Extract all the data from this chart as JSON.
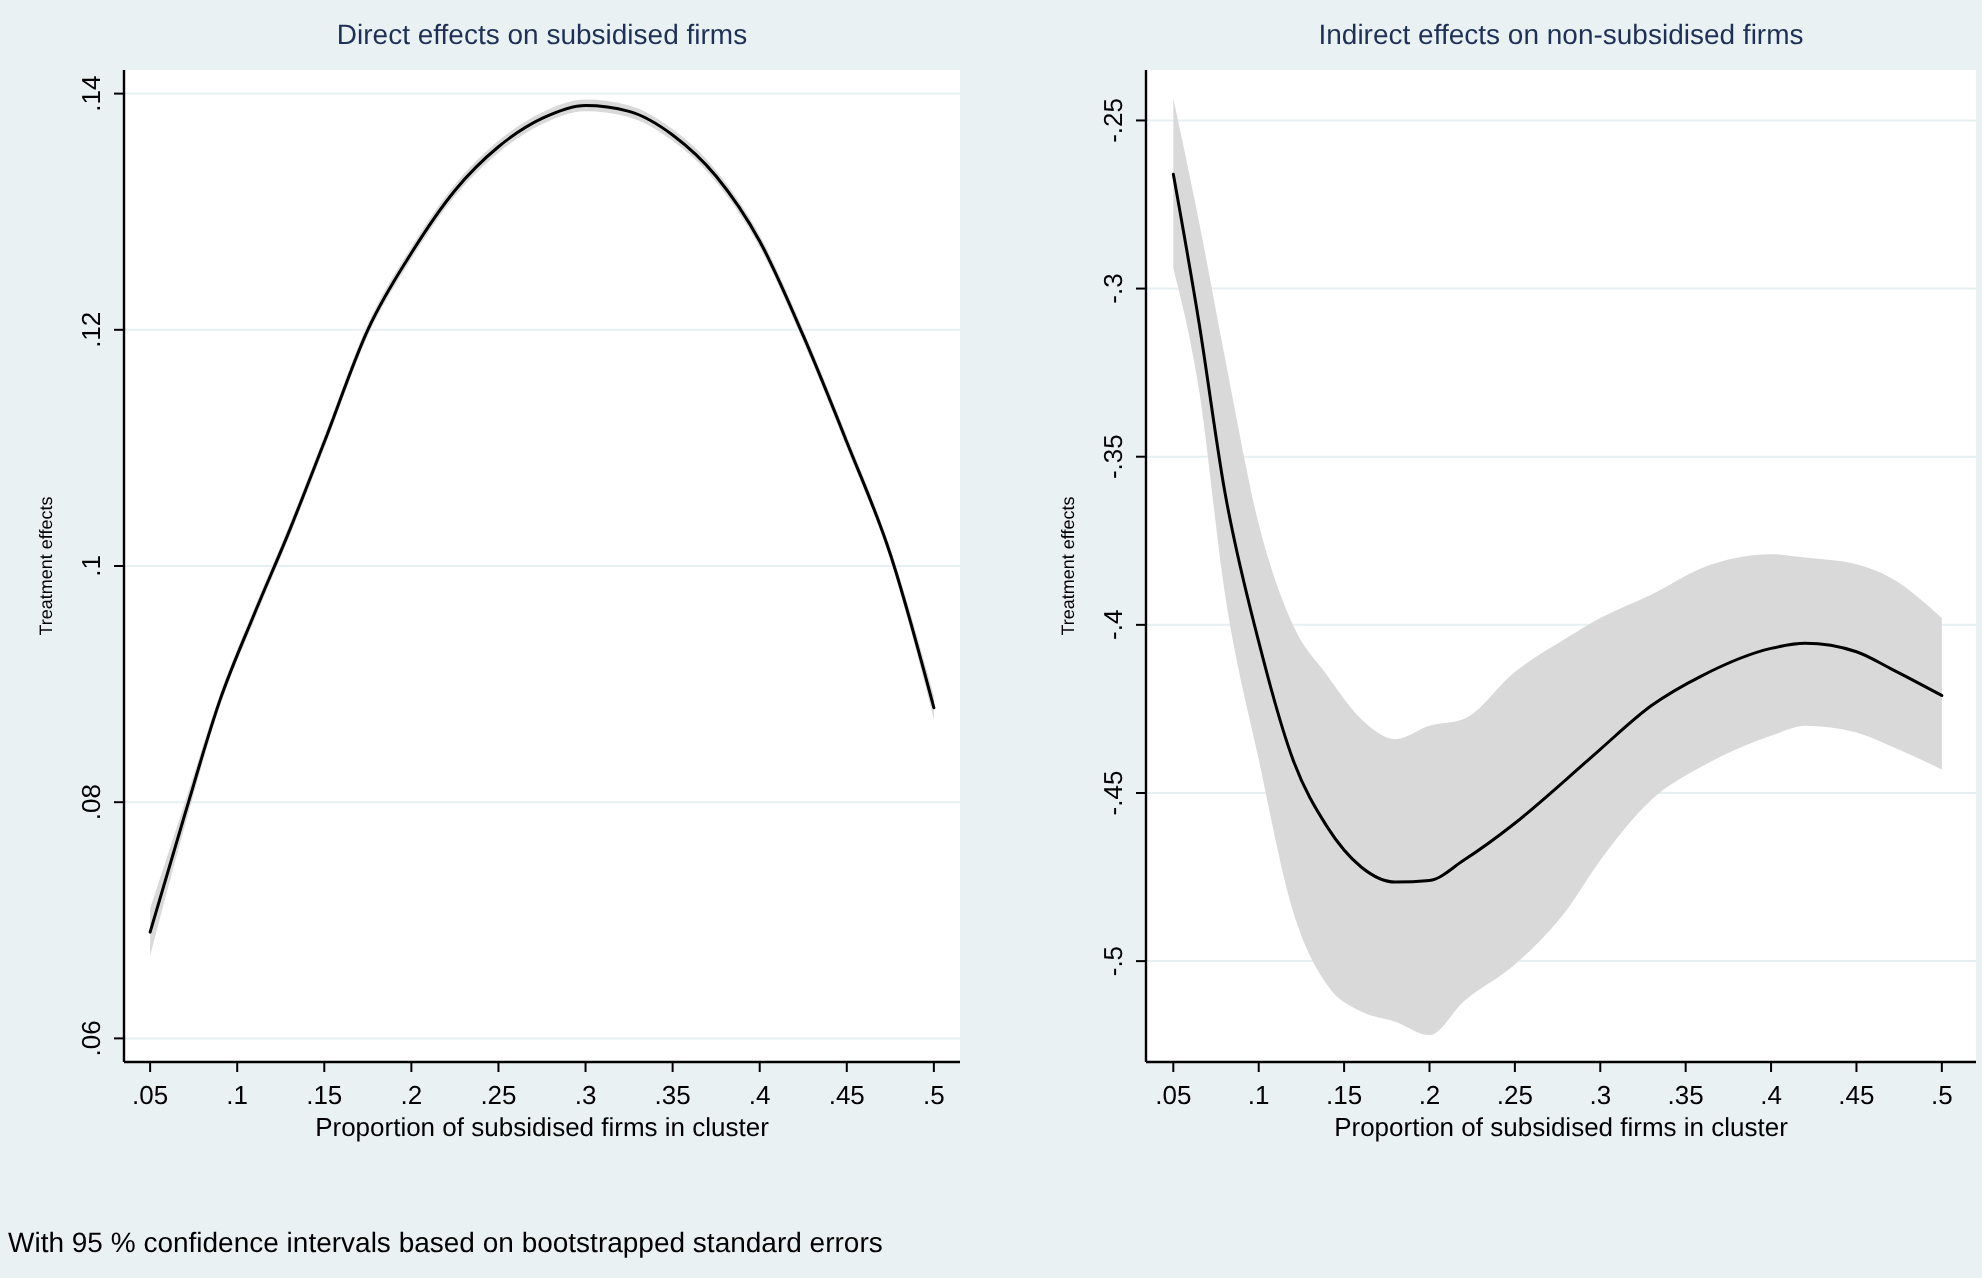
{
  "chart_data": [
    {
      "type": "line",
      "title": "Direct effects on subsidised firms",
      "xlabel": "Proportion of subsidised firms in cluster",
      "ylabel": "Treatment effects",
      "xlim": [
        0.035,
        0.515
      ],
      "ylim": [
        0.058,
        0.142
      ],
      "xticks": [
        {
          "value": 0.05,
          "label": ".05"
        },
        {
          "value": 0.1,
          "label": ".1"
        },
        {
          "value": 0.15,
          "label": ".15"
        },
        {
          "value": 0.2,
          "label": ".2"
        },
        {
          "value": 0.25,
          "label": ".25"
        },
        {
          "value": 0.3,
          "label": ".3"
        },
        {
          "value": 0.35,
          "label": ".35"
        },
        {
          "value": 0.4,
          "label": ".4"
        },
        {
          "value": 0.45,
          "label": ".45"
        },
        {
          "value": 0.5,
          "label": ".5"
        }
      ],
      "yticks": [
        {
          "value": 0.06,
          "label": ".06"
        },
        {
          "value": 0.08,
          "label": ".08"
        },
        {
          "value": 0.1,
          "label": ".1"
        },
        {
          "value": 0.12,
          "label": ".12"
        },
        {
          "value": 0.14,
          "label": ".14"
        }
      ],
      "grid": "y",
      "annotations": [
        "With 95 % confidence intervals based on bootstrapped standard errors"
      ],
      "series": [
        {
          "color": "#000000",
          "x": [
            0.05,
            0.07,
            0.09,
            0.11,
            0.13,
            0.15,
            0.175,
            0.2,
            0.225,
            0.25,
            0.275,
            0.3,
            0.325,
            0.35,
            0.375,
            0.4,
            0.425,
            0.45,
            0.475,
            0.5
          ],
          "values": [
            0.069,
            0.079,
            0.0886,
            0.096,
            0.103,
            0.1105,
            0.12,
            0.1265,
            0.1318,
            0.1355,
            0.1379,
            0.139,
            0.1385,
            0.1365,
            0.133,
            0.1275,
            0.1195,
            0.1105,
            0.101,
            0.088
          ],
          "lower": [
            0.067,
            0.078,
            0.0881,
            0.0955,
            0.1025,
            0.11,
            0.1195,
            0.126,
            0.1313,
            0.135,
            0.1374,
            0.1385,
            0.138,
            0.136,
            0.1325,
            0.127,
            0.119,
            0.11,
            0.1005,
            0.087
          ],
          "upper": [
            0.071,
            0.08,
            0.0891,
            0.0965,
            0.1035,
            0.111,
            0.1205,
            0.127,
            0.1323,
            0.136,
            0.1384,
            0.1395,
            0.139,
            0.137,
            0.1335,
            0.128,
            0.12,
            0.111,
            0.1015,
            0.089
          ]
        }
      ]
    },
    {
      "type": "line",
      "title": "Indirect effects on non-subsidised firms",
      "xlabel": "Proportion of subsidised firms in cluster",
      "ylabel": "Treatment effects",
      "xlim": [
        0.034,
        0.52
      ],
      "ylim": [
        -0.53,
        -0.235
      ],
      "xticks": [
        {
          "value": 0.05,
          "label": ".05"
        },
        {
          "value": 0.1,
          "label": ".1"
        },
        {
          "value": 0.15,
          "label": ".15"
        },
        {
          "value": 0.2,
          "label": ".2"
        },
        {
          "value": 0.25,
          "label": ".25"
        },
        {
          "value": 0.3,
          "label": ".3"
        },
        {
          "value": 0.35,
          "label": ".35"
        },
        {
          "value": 0.4,
          "label": ".4"
        },
        {
          "value": 0.45,
          "label": ".45"
        },
        {
          "value": 0.5,
          "label": ".5"
        }
      ],
      "yticks": [
        {
          "value": -0.5,
          "label": "-.5"
        },
        {
          "value": -0.45,
          "label": "-.45"
        },
        {
          "value": -0.4,
          "label": "-.4"
        },
        {
          "value": -0.35,
          "label": "-.35"
        },
        {
          "value": -0.3,
          "label": "-.3"
        },
        {
          "value": -0.25,
          "label": "-.25"
        }
      ],
      "grid": "y",
      "series": [
        {
          "color": "#000000",
          "x": [
            0.05,
            0.065,
            0.08,
            0.1,
            0.12,
            0.14,
            0.16,
            0.18,
            0.2,
            0.22,
            0.25,
            0.28,
            0.3,
            0.33,
            0.36,
            0.4,
            0.42,
            0.45,
            0.47,
            0.5
          ],
          "values": [
            -0.266,
            -0.31,
            -0.36,
            -0.405,
            -0.44,
            -0.46,
            -0.472,
            -0.4765,
            -0.476,
            -0.47,
            -0.459,
            -0.446,
            -0.437,
            -0.424,
            -0.415,
            -0.407,
            -0.4055,
            -0.408,
            -0.413,
            -0.421
          ],
          "lower": [
            -0.294,
            -0.33,
            -0.39,
            -0.44,
            -0.485,
            -0.507,
            -0.515,
            -0.518,
            -0.522,
            -0.512,
            -0.501,
            -0.485,
            -0.47,
            -0.452,
            -0.442,
            -0.433,
            -0.43,
            -0.432,
            -0.436,
            -0.443
          ],
          "upper": [
            -0.2435,
            -0.28,
            -0.32,
            -0.37,
            -0.4,
            -0.415,
            -0.428,
            -0.434,
            -0.43,
            -0.428,
            -0.414,
            -0.404,
            -0.398,
            -0.391,
            -0.383,
            -0.379,
            -0.38,
            -0.382,
            -0.386,
            -0.398
          ]
        }
      ]
    }
  ]
}
